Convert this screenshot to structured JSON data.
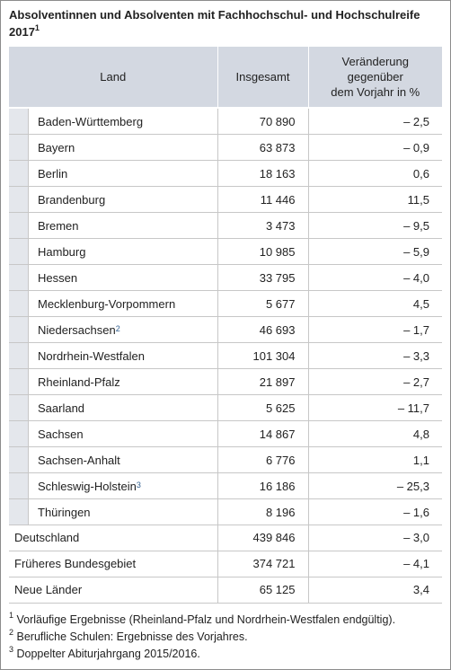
{
  "title": {
    "text": "Absolventinnen und Absolventen mit Fachhochschul- und Hochschulreife 2017",
    "footnote_mark": "1"
  },
  "table": {
    "headers": [
      "Land",
      "Insgesamt",
      "Veränderung gegenüber dem Vorjahr in %"
    ],
    "header3_lines": [
      "Veränderung",
      "gegenüber",
      "dem Vorjahr in %"
    ],
    "rows": [
      {
        "land": "Baden-Württemberg",
        "insgesamt": "70 890",
        "veraenderung": "– 2,5",
        "sup": ""
      },
      {
        "land": "Bayern",
        "insgesamt": "63 873",
        "veraenderung": "– 0,9",
        "sup": ""
      },
      {
        "land": "Berlin",
        "insgesamt": "18 163",
        "veraenderung": "0,6",
        "sup": ""
      },
      {
        "land": "Brandenburg",
        "insgesamt": "11 446",
        "veraenderung": "11,5",
        "sup": ""
      },
      {
        "land": "Bremen",
        "insgesamt": "3 473",
        "veraenderung": "– 9,5",
        "sup": ""
      },
      {
        "land": "Hamburg",
        "insgesamt": "10 985",
        "veraenderung": "– 5,9",
        "sup": ""
      },
      {
        "land": "Hessen",
        "insgesamt": "33 795",
        "veraenderung": "– 4,0",
        "sup": ""
      },
      {
        "land": "Mecklenburg-Vorpommern",
        "insgesamt": "5 677",
        "veraenderung": "4,5",
        "sup": ""
      },
      {
        "land": "Niedersachsen",
        "insgesamt": "46 693",
        "veraenderung": "– 1,7",
        "sup": "2"
      },
      {
        "land": "Nordrhein-Westfalen",
        "insgesamt": "101 304",
        "veraenderung": "– 3,3",
        "sup": ""
      },
      {
        "land": "Rheinland-Pfalz",
        "insgesamt": "21 897",
        "veraenderung": "– 2,7",
        "sup": ""
      },
      {
        "land": "Saarland",
        "insgesamt": "5 625",
        "veraenderung": "– 11,7",
        "sup": ""
      },
      {
        "land": "Sachsen",
        "insgesamt": "14 867",
        "veraenderung": "4,8",
        "sup": ""
      },
      {
        "land": "Sachsen-Anhalt",
        "insgesamt": "6 776",
        "veraenderung": "1,1",
        "sup": ""
      },
      {
        "land": "Schleswig-Holstein",
        "insgesamt": "16 186",
        "veraenderung": "– 25,3",
        "sup": "3"
      },
      {
        "land": "Thüringen",
        "insgesamt": "8 196",
        "veraenderung": "– 1,6",
        "sup": ""
      }
    ],
    "totals": [
      {
        "land": "Deutschland",
        "insgesamt": "439 846",
        "veraenderung": "– 3,0"
      },
      {
        "land": "Früheres Bundesgebiet",
        "insgesamt": "374 721",
        "veraenderung": "– 4,1"
      },
      {
        "land": "Neue Länder",
        "insgesamt": "65 125",
        "veraenderung": "3,4"
      }
    ]
  },
  "footnotes": [
    {
      "mark": "1",
      "text": "Vorläufige Ergebnisse (Rheinland-Pfalz und Nordrhein-Westfalen endgültig)."
    },
    {
      "mark": "2",
      "text": "Berufliche Schulen: Ergebnisse des Vorjahres."
    },
    {
      "mark": "3",
      "text": "Doppelter Abiturjahrgang 2015/2016."
    }
  ]
}
